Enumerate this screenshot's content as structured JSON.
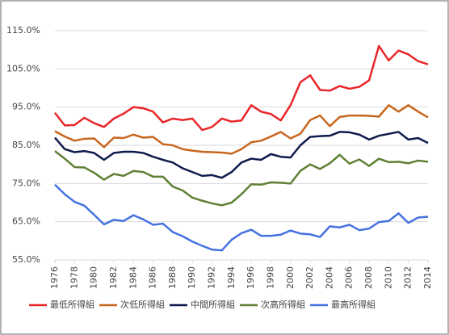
{
  "chart_data": {
    "type": "line",
    "x": [
      1976,
      1977,
      1978,
      1979,
      1980,
      1981,
      1982,
      1983,
      1984,
      1985,
      1986,
      1987,
      1988,
      1989,
      1990,
      1991,
      1992,
      1993,
      1994,
      1995,
      1996,
      1997,
      1998,
      1999,
      2000,
      2001,
      2002,
      2003,
      2004,
      2005,
      2006,
      2007,
      2008,
      2009,
      2010,
      2011,
      2012,
      2013,
      2014
    ],
    "series": [
      {
        "name": "最低所得組",
        "color": "#e8262a",
        "values": [
          93.5,
          90.2,
          90.3,
          92.2,
          90.8,
          89.8,
          92.0,
          93.3,
          95.0,
          94.7,
          93.8,
          91.0,
          92.0,
          91.6,
          92.0,
          89.0,
          89.8,
          92.0,
          91.2,
          91.5,
          95.5,
          93.8,
          93.2,
          91.5,
          95.5,
          101.5,
          103.3,
          99.5,
          99.3,
          100.5,
          99.8,
          100.3,
          102.0,
          111.0,
          107.2,
          109.8,
          108.8,
          107.0,
          106.2
        ]
      },
      {
        "name": "次低所得組",
        "color": "#c8661e",
        "values": [
          88.7,
          87.3,
          86.2,
          86.7,
          86.8,
          84.5,
          87.0,
          86.9,
          87.8,
          87.0,
          87.2,
          85.3,
          85.0,
          84.0,
          83.6,
          83.3,
          83.2,
          83.1,
          82.8,
          84.0,
          85.8,
          86.2,
          87.3,
          88.5,
          86.8,
          88.0,
          91.6,
          92.8,
          90.0,
          92.4,
          92.8,
          92.8,
          92.7,
          92.5,
          95.5,
          93.8,
          95.5,
          93.8,
          92.3
        ]
      },
      {
        "name": "中間所得組",
        "color": "#0f1b4c",
        "values": [
          87.0,
          84.0,
          83.2,
          83.5,
          83.0,
          81.2,
          83.0,
          83.3,
          83.3,
          83.0,
          82.0,
          81.2,
          80.5,
          79.0,
          78.0,
          77.0,
          77.2,
          76.5,
          78.0,
          80.5,
          81.5,
          81.2,
          82.7,
          82.0,
          81.8,
          85.0,
          87.2,
          87.4,
          87.5,
          88.5,
          88.4,
          87.8,
          86.5,
          87.5,
          88.0,
          88.5,
          86.5,
          86.9,
          85.6
        ]
      },
      {
        "name": "次高所得組",
        "color": "#5f8035",
        "values": [
          83.5,
          81.5,
          79.3,
          79.2,
          77.8,
          76.0,
          77.5,
          77.0,
          78.3,
          78.0,
          76.8,
          76.8,
          74.2,
          73.2,
          71.3,
          70.5,
          69.8,
          69.3,
          70.0,
          72.2,
          74.8,
          74.7,
          75.3,
          75.2,
          75.0,
          78.3,
          80.0,
          78.8,
          80.3,
          82.5,
          80.2,
          81.3,
          79.6,
          81.5,
          80.6,
          80.7,
          80.3,
          81.0,
          80.7
        ]
      },
      {
        "name": "最高所得組",
        "color": "#4472e0",
        "values": [
          74.7,
          72.2,
          70.2,
          69.2,
          66.8,
          64.3,
          65.5,
          65.2,
          66.7,
          65.6,
          64.2,
          64.5,
          62.3,
          61.2,
          59.8,
          58.7,
          57.7,
          57.5,
          60.3,
          62.0,
          62.9,
          61.3,
          61.3,
          61.6,
          62.7,
          61.9,
          61.7,
          61.0,
          63.8,
          63.5,
          64.2,
          62.8,
          63.2,
          64.9,
          65.2,
          67.2,
          64.7,
          66.1,
          66.3
        ]
      }
    ],
    "xlim": [
      1976,
      2014
    ],
    "xticks": [
      1976,
      1978,
      1980,
      1982,
      1984,
      1986,
      1988,
      1990,
      1992,
      1994,
      1996,
      1998,
      2000,
      2002,
      2004,
      2006,
      2008,
      2010,
      2012,
      2014
    ],
    "ylim": [
      55,
      115
    ],
    "yticks": [
      {
        "value": 55,
        "label": "55.0%"
      },
      {
        "value": 65,
        "label": "65.0%"
      },
      {
        "value": 75,
        "label": "75.0%"
      },
      {
        "value": 85,
        "label": "85.0%"
      },
      {
        "value": 95,
        "label": "95.0%"
      },
      {
        "value": 105,
        "label": "105.0%"
      },
      {
        "value": 115,
        "label": "115.0%"
      }
    ],
    "grid": true,
    "legend": "bottom"
  }
}
